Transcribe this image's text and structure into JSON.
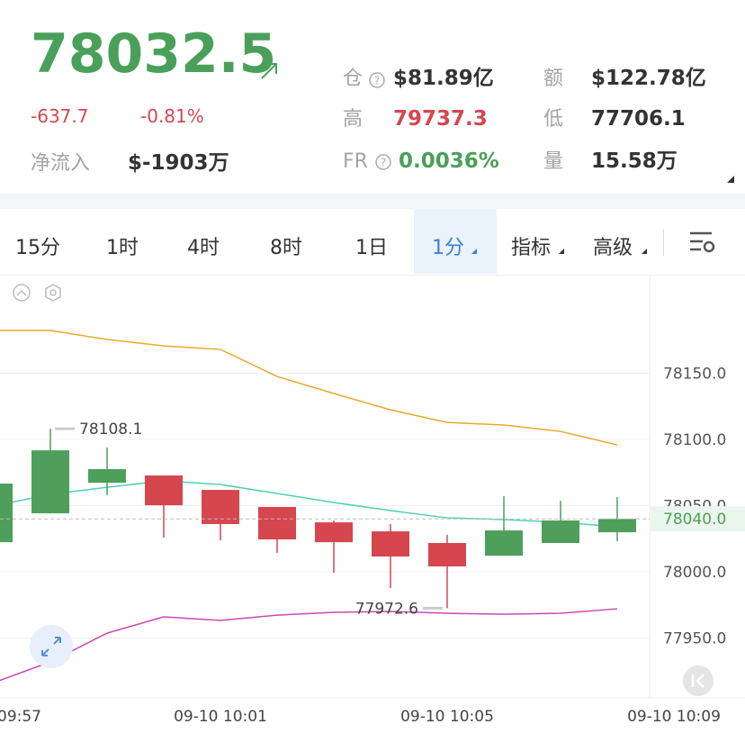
{
  "header": {
    "price": "78032.5",
    "change": "-637.7",
    "change_pct": "-0.81%",
    "net_inflow_label": "净流入",
    "net_inflow": "$-1903万",
    "stats": [
      {
        "label": "仓",
        "value": "$81.89亿"
      },
      {
        "label": "额",
        "value": "$122.78亿"
      },
      {
        "label": "高",
        "value": "79737.3"
      },
      {
        "label": "低",
        "value": "77706.1"
      },
      {
        "label": "FR",
        "value": "0.0036%"
      },
      {
        "label": "量",
        "value": "15.58万"
      }
    ]
  },
  "tabs": [
    "15分",
    "1时",
    "4时",
    "8时",
    "1日",
    "1分",
    "指标",
    "高级"
  ],
  "chart_data": {
    "type": "candlestick",
    "categories": [
      "09:57",
      null,
      null,
      null,
      "09-10 10:01",
      null,
      null,
      null,
      "09-10 10:05",
      null,
      null,
      null,
      "09-10 10:09"
    ],
    "open": [
      78022.4,
      78044.2,
      78067.3,
      78072.8,
      78061.9,
      78049.0,
      78037.4,
      78030.6,
      78021.8,
      78012.2,
      78021.8,
      78029.9,
      null
    ],
    "high": [
      78070,
      78108.1,
      78093.9,
      78072.8,
      78061.9,
      78049.0,
      78038.8,
      78036.1,
      78027.9,
      78057.1,
      78053.7,
      78056.5,
      null
    ],
    "low": [
      78020,
      78044.2,
      78057.8,
      78025.9,
      78023.8,
      78014.3,
      77999.3,
      77987.8,
      77972.6,
      78012.2,
      78021.8,
      78023.1,
      null
    ],
    "close": [
      78066.7,
      78091.8,
      78077.6,
      78050.3,
      78036.1,
      78024.5,
      78022.4,
      78011.6,
      78004.1,
      78031.3,
      78038.8,
      78040.0,
      null
    ],
    "up_color": "#4e9f5c",
    "down_color": "#d6464f",
    "lines": [
      {
        "color": "#e8a92a",
        "values": [
          78182.3,
          78182.3,
          78175.5,
          78170.7,
          78168.0,
          78147.6,
          78134.7,
          78122.4,
          78112.9,
          78110.9,
          78106.1,
          78095.9,
          null
        ]
      },
      {
        "color": "#4fcfb4",
        "values": [
          78049.7,
          78058.5,
          78063.9,
          78068.7,
          78066.0,
          78059.2,
          78052.4,
          78046.3,
          78040.8,
          78039.5,
          78037.4,
          78034.0,
          null
        ]
      },
      {
        "color": "#c84bb0",
        "values": [
          77916.3,
          77932.0,
          77953.7,
          77966.0,
          77963.3,
          77967.3,
          77969.4,
          77970.1,
          77968.7,
          77968.0,
          77968.7,
          77972.1,
          null
        ]
      }
    ],
    "ylim": [
      77904.8,
      78224.5
    ],
    "yticks": [
      {
        "value": 77950,
        "label": "77950.0"
      },
      {
        "value": 78000,
        "label": "78000.0"
      },
      {
        "value": 78050,
        "label": "78050.0"
      },
      {
        "value": 78100,
        "label": "78100.0"
      },
      {
        "value": 78150,
        "label": "78150.0"
      }
    ],
    "last_price": {
      "value": 78040,
      "label": "78040.0"
    },
    "grid": true
  }
}
